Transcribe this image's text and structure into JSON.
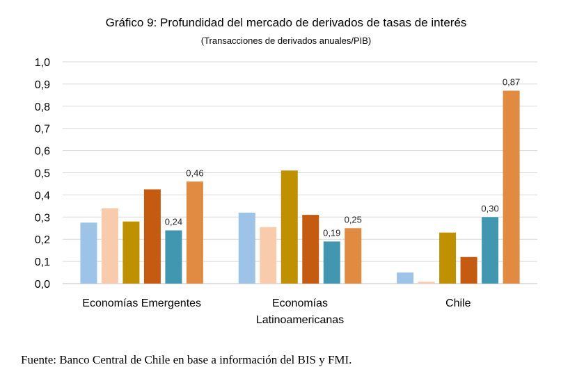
{
  "chart_data": {
    "type": "bar",
    "title": "Gráfico 9: Profundidad del mercado de derivados de tasas de interés",
    "subtitle": "(Transacciones de derivados anuales/PIB)",
    "xlabel": "",
    "ylabel": "",
    "ylim": [
      0,
      1.0
    ],
    "y_ticks": [
      "0,0",
      "0,1",
      "0,2",
      "0,3",
      "0,4",
      "0,5",
      "0,6",
      "0,7",
      "0,8",
      "0,9",
      "1,0"
    ],
    "grid": true,
    "legend": "none",
    "categories": [
      [
        "Economías Emergentes"
      ],
      [
        "Economías",
        "Latinoamericanas"
      ],
      [
        "Chile"
      ]
    ],
    "series": [
      {
        "color": "#9dc3e6",
        "values": [
          0.275,
          0.32,
          0.05
        ]
      },
      {
        "color": "#f8cbad",
        "values": [
          0.34,
          0.255,
          0.008
        ]
      },
      {
        "color": "#bf9000",
        "values": [
          0.28,
          0.51,
          0.23
        ]
      },
      {
        "color": "#c55a11",
        "values": [
          0.425,
          0.31,
          0.12
        ]
      },
      {
        "color": "#4297b0",
        "values": [
          0.24,
          0.19,
          0.3
        ]
      },
      {
        "color": "#e08a42",
        "values": [
          0.46,
          0.25,
          0.87
        ]
      }
    ],
    "data_labels": [
      {
        "series": 4,
        "category": 0,
        "text": "0,24"
      },
      {
        "series": 5,
        "category": 0,
        "text": "0,46"
      },
      {
        "series": 4,
        "category": 1,
        "text": "0,19"
      },
      {
        "series": 5,
        "category": 1,
        "text": "0,25"
      },
      {
        "series": 4,
        "category": 2,
        "text": "0,30"
      },
      {
        "series": 5,
        "category": 2,
        "text": "0,87"
      }
    ]
  },
  "source": "Fuente: Banco Central de Chile en base a información del BIS y FMI."
}
